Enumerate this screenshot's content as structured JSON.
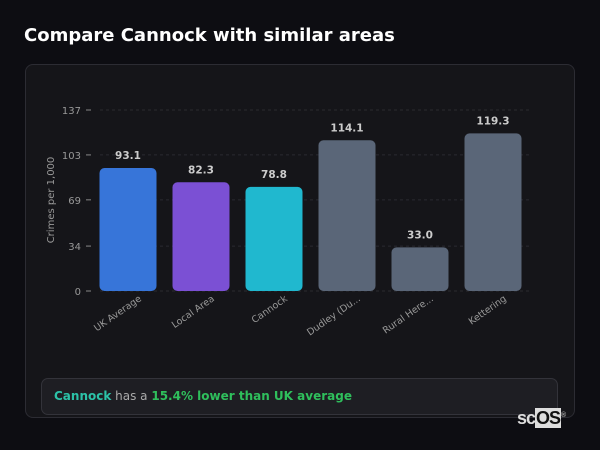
{
  "title": "Compare Cannock with similar areas",
  "chart_data": {
    "type": "bar",
    "ylabel": "Crimes per 1,000",
    "ylim": [
      0,
      137
    ],
    "yticks": [
      0,
      34,
      69,
      103,
      137
    ],
    "grid": true,
    "categories": [
      "UK Average",
      "Local Area",
      "Cannock",
      "Dudley (Du...",
      "Rural Here...",
      "Kettering"
    ],
    "values": [
      93.1,
      82.3,
      78.8,
      114.1,
      33.0,
      119.3
    ],
    "value_labels": [
      "93.1",
      "82.3",
      "78.8",
      "114.1",
      "33.0",
      "119.3"
    ],
    "colors": [
      "#3775d9",
      "#7b50d4",
      "#20b8cf",
      "#5a6678",
      "#5a6678",
      "#5a6678"
    ]
  },
  "summary": {
    "area": "Cannock",
    "middle": " has a ",
    "comparison": "15.4% lower than UK average"
  },
  "logo": {
    "text": "scOS"
  }
}
